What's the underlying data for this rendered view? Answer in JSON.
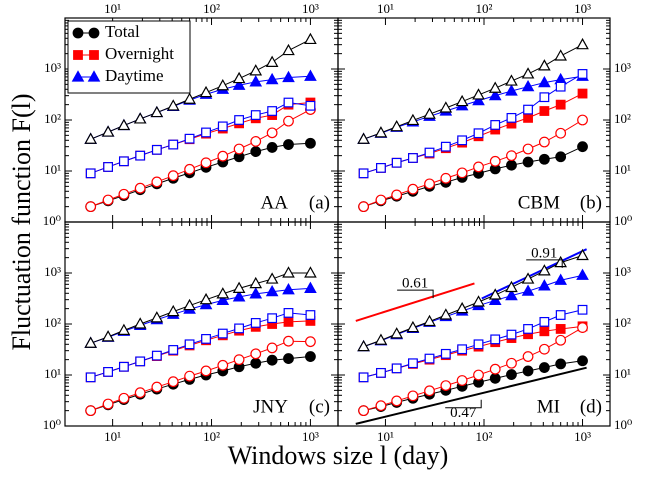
{
  "xlabel": "Windows size l (day)",
  "ylabel": "Fluctuation function F(l)",
  "chart_data": [
    {
      "type": "line",
      "title": "AA",
      "tag": "(a)",
      "x_scale": "log",
      "y_scale": "log",
      "xlim": [
        3.3,
        1900
      ],
      "ylim": [
        1,
        10000
      ],
      "xticks": [
        {
          "value": 10,
          "label": "10¹"
        },
        {
          "value": 100,
          "label": "10²"
        },
        {
          "value": 1000,
          "label": "10³"
        }
      ],
      "yticks": [
        {
          "value": 1,
          "label": "10⁰"
        },
        {
          "value": 10,
          "label": "10¹"
        },
        {
          "value": 100,
          "label": "10²"
        },
        {
          "value": 1000,
          "label": "10³"
        }
      ],
      "legend": "upper left",
      "x": [
        6,
        9,
        13,
        19,
        28,
        41,
        60,
        88,
        130,
        190,
        280,
        410,
        600,
        1000
      ],
      "series": [
        {
          "name": "Total",
          "color": "#000000",
          "marker": "circle",
          "filled": true,
          "values": [
            2,
            2.6,
            3.3,
            4.3,
            5.6,
            7.2,
            9.2,
            11.8,
            15,
            19,
            24,
            29,
            33,
            35
          ]
        },
        {
          "name": "Overnight",
          "color": "#ff0000",
          "marker": "square",
          "filled": true,
          "values": [
            9,
            12,
            15.5,
            20,
            26,
            33,
            42,
            54,
            68,
            86,
            108,
            125,
            200,
            220
          ]
        },
        {
          "name": "Daytime",
          "color": "#0000ff",
          "marker": "triangle",
          "filled": true,
          "values": [
            42,
            58,
            78,
            105,
            140,
            185,
            245,
            320,
            400,
            480,
            560,
            620,
            680,
            720
          ]
        },
        {
          "color": "#ff0000",
          "marker": "circle",
          "filled": false,
          "values": [
            2,
            2.7,
            3.5,
            4.6,
            6.1,
            8.1,
            10.8,
            14.5,
            19.5,
            27,
            38,
            56,
            95,
            160
          ]
        },
        {
          "color": "#0000ff",
          "marker": "square",
          "filled": false,
          "values": [
            9,
            12,
            15.5,
            20,
            26,
            33,
            43,
            57,
            75,
            100,
            125,
            150,
            220,
            190
          ]
        },
        {
          "color": "#000000",
          "marker": "triangle",
          "filled": false,
          "values": [
            42,
            58,
            78,
            105,
            140,
            188,
            255,
            345,
            470,
            650,
            920,
            1350,
            2300,
            3800
          ]
        }
      ]
    },
    {
      "type": "line",
      "title": "CBM",
      "tag": "(b)",
      "x_scale": "log",
      "y_scale": "log",
      "xlim": [
        3.3,
        1900
      ],
      "ylim": [
        1,
        10000
      ],
      "xticks": [
        {
          "value": 10,
          "label": "10¹"
        },
        {
          "value": 100,
          "label": "10²"
        },
        {
          "value": 1000,
          "label": "10³"
        }
      ],
      "yticks": [
        {
          "value": 1,
          "label": "10⁰"
        },
        {
          "value": 10,
          "label": "10¹"
        },
        {
          "value": 100,
          "label": "10²"
        },
        {
          "value": 1000,
          "label": "10³"
        }
      ],
      "x": [
        6,
        9,
        13,
        19,
        28,
        41,
        60,
        88,
        130,
        190,
        280,
        410,
        600,
        1000
      ],
      "series": [
        {
          "color": "#000000",
          "marker": "circle",
          "filled": true,
          "values": [
            2,
            2.6,
            3.2,
            4,
            5,
            6,
            7.5,
            9,
            11,
            13,
            15,
            17,
            19,
            30
          ]
        },
        {
          "color": "#ff0000",
          "marker": "square",
          "filled": true,
          "values": [
            9,
            11.5,
            14.5,
            18,
            22,
            28,
            36,
            48,
            65,
            85,
            110,
            150,
            200,
            330
          ]
        },
        {
          "color": "#0000ff",
          "marker": "triangle",
          "filled": true,
          "values": [
            42,
            55,
            72,
            92,
            118,
            150,
            190,
            240,
            300,
            370,
            450,
            540,
            620,
            720
          ]
        },
        {
          "color": "#ff0000",
          "marker": "circle",
          "filled": false,
          "values": [
            2,
            2.7,
            3.4,
            4.4,
            5.6,
            7.2,
            9.2,
            12,
            15.5,
            20,
            27,
            37,
            55,
            100
          ]
        },
        {
          "color": "#0000ff",
          "marker": "square",
          "filled": false,
          "values": [
            9,
            11.5,
            14.5,
            18,
            23,
            30,
            40,
            55,
            80,
            110,
            160,
            280,
            450,
            800
          ]
        },
        {
          "color": "#000000",
          "marker": "triangle",
          "filled": false,
          "values": [
            42,
            56,
            74,
            98,
            130,
            172,
            230,
            310,
            420,
            580,
            800,
            1150,
            1800,
            3000
          ]
        }
      ]
    },
    {
      "type": "line",
      "title": "JNY",
      "tag": "(c)",
      "x_scale": "log",
      "y_scale": "log",
      "xlim": [
        3.3,
        1900
      ],
      "ylim": [
        1,
        10000
      ],
      "xticks": [
        {
          "value": 10,
          "label": "10¹"
        },
        {
          "value": 100,
          "label": "10²"
        },
        {
          "value": 1000,
          "label": "10³"
        }
      ],
      "yticks": [
        {
          "value": 1,
          "label": "10⁰"
        },
        {
          "value": 10,
          "label": "10¹"
        },
        {
          "value": 100,
          "label": "10²"
        },
        {
          "value": 1000,
          "label": "10³"
        }
      ],
      "x": [
        6,
        9,
        13,
        19,
        28,
        41,
        60,
        88,
        130,
        190,
        280,
        410,
        600,
        1000
      ],
      "series": [
        {
          "color": "#000000",
          "marker": "circle",
          "filled": true,
          "values": [
            2,
            2.6,
            3.3,
            4.2,
            5.3,
            6.6,
            8.2,
            10,
            12,
            14.5,
            17,
            19.5,
            21,
            23
          ]
        },
        {
          "color": "#ff0000",
          "marker": "square",
          "filled": true,
          "values": [
            9,
            11.5,
            14.5,
            18.5,
            23.5,
            30,
            38,
            48,
            60,
            74,
            88,
            100,
            110,
            115
          ]
        },
        {
          "color": "#0000ff",
          "marker": "triangle",
          "filled": true,
          "values": [
            42,
            55,
            72,
            94,
            122,
            155,
            195,
            240,
            290,
            340,
            390,
            430,
            470,
            500
          ]
        },
        {
          "color": "#ff0000",
          "marker": "circle",
          "filled": false,
          "values": [
            2,
            2.7,
            3.5,
            4.5,
            5.8,
            7.4,
            9.5,
            12,
            15.5,
            20,
            26,
            34,
            46,
            45
          ]
        },
        {
          "color": "#0000ff",
          "marker": "square",
          "filled": false,
          "values": [
            9,
            11.5,
            14.5,
            18.5,
            24,
            31,
            40,
            51,
            65,
            82,
            105,
            130,
            165,
            150
          ]
        },
        {
          "color": "#000000",
          "marker": "triangle",
          "filled": false,
          "values": [
            42,
            56,
            75,
            100,
            132,
            175,
            230,
            300,
            390,
            500,
            620,
            760,
            1000,
            1000
          ]
        }
      ]
    },
    {
      "type": "line",
      "title": "MI",
      "tag": "(d)",
      "x_scale": "log",
      "y_scale": "log",
      "xlim": [
        3.3,
        1900
      ],
      "ylim": [
        1,
        10000
      ],
      "xticks": [
        {
          "value": 10,
          "label": "10¹"
        },
        {
          "value": 100,
          "label": "10²"
        },
        {
          "value": 1000,
          "label": "10³"
        }
      ],
      "yticks": [
        {
          "value": 1,
          "label": "10⁰"
        },
        {
          "value": 10,
          "label": "10¹"
        },
        {
          "value": 100,
          "label": "10²"
        },
        {
          "value": 1000,
          "label": "10³"
        }
      ],
      "x": [
        6,
        9,
        13,
        19,
        28,
        41,
        60,
        88,
        130,
        190,
        280,
        410,
        600,
        1000
      ],
      "series": [
        {
          "color": "#000000",
          "marker": "circle",
          "filled": true,
          "values": [
            2,
            2.4,
            2.9,
            3.5,
            4.2,
            5,
            6,
            7.2,
            8.6,
            10.2,
            12,
            14,
            16.5,
            19
          ]
        },
        {
          "color": "#ff0000",
          "marker": "square",
          "filled": true,
          "values": [
            9,
            11,
            13.5,
            16.5,
            20,
            24.5,
            30,
            36,
            44,
            53,
            63,
            72,
            80,
            90
          ]
        },
        {
          "color": "#0000ff",
          "marker": "triangle",
          "filled": true,
          "values": [
            36,
            47,
            62,
            82,
            108,
            140,
            180,
            230,
            290,
            360,
            440,
            560,
            720,
            900
          ]
        },
        {
          "color": "#ff0000",
          "marker": "circle",
          "filled": false,
          "values": [
            2,
            2.5,
            3.1,
            3.9,
            4.9,
            6.2,
            7.8,
            10,
            13,
            17,
            23,
            32,
            48,
            85
          ]
        },
        {
          "color": "#0000ff",
          "marker": "square",
          "filled": false,
          "values": [
            9,
            11,
            13.5,
            17,
            21,
            26,
            32,
            40,
            50,
            62,
            80,
            110,
            150,
            190
          ]
        },
        {
          "color": "#000000",
          "marker": "triangle",
          "filled": false,
          "values": [
            36,
            48,
            64,
            85,
            112,
            150,
            200,
            270,
            370,
            520,
            760,
            1100,
            1600,
            2200
          ]
        }
      ],
      "fits": [
        {
          "label": "0.61",
          "color": "#ff0000",
          "x": [
            5,
            80
          ],
          "y": [
            115,
            625
          ]
        },
        {
          "label": "0.91",
          "color": "#0000ff",
          "x": [
            95,
            1100
          ],
          "y": [
            316,
            2930
          ]
        },
        {
          "label": "0.47",
          "color": "#000000",
          "x": [
            5,
            1100
          ],
          "y": [
            1.1,
            13.9
          ]
        }
      ]
    }
  ]
}
